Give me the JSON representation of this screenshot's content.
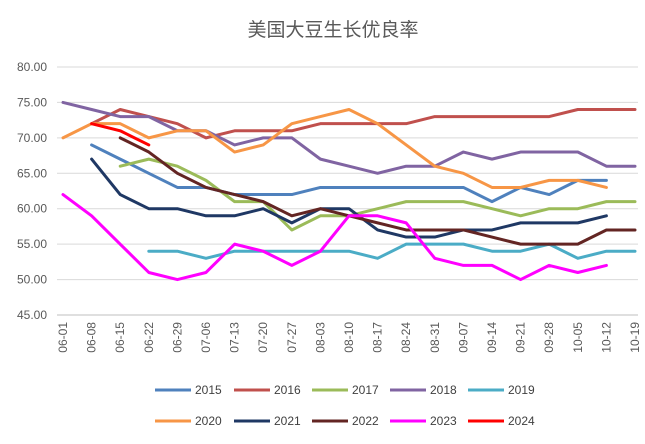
{
  "chart_data": {
    "type": "line",
    "title": "美国大豆生长优良率",
    "xlabel": "",
    "ylabel": "",
    "ylim": [
      45,
      80
    ],
    "yticks": [
      "45.00",
      "50.00",
      "55.00",
      "60.00",
      "65.00",
      "70.00",
      "75.00",
      "80.00"
    ],
    "categories": [
      "06-01",
      "06-08",
      "06-15",
      "06-22",
      "06-29",
      "07-06",
      "07-13",
      "07-20",
      "07-27",
      "08-03",
      "08-10",
      "08-17",
      "08-24",
      "08-31",
      "09-07",
      "09-14",
      "09-21",
      "09-28",
      "10-05",
      "10-12",
      "10-19"
    ],
    "grid": "horizontal",
    "legend_position": "bottom",
    "series": [
      {
        "name": "2015",
        "color": "#4F81BD",
        "values": [
          null,
          69,
          67,
          65,
          63,
          63,
          62,
          62,
          62,
          63,
          63,
          63,
          63,
          63,
          63,
          61,
          63,
          62,
          64,
          64,
          null
        ]
      },
      {
        "name": "2016",
        "color": "#C0504D",
        "values": [
          null,
          72,
          74,
          73,
          72,
          70,
          71,
          71,
          71,
          72,
          72,
          72,
          72,
          73,
          73,
          73,
          73,
          73,
          74,
          74,
          74
        ]
      },
      {
        "name": "2017",
        "color": "#9BBB59",
        "values": [
          null,
          null,
          66,
          67,
          66,
          64,
          61,
          61,
          57,
          59,
          59,
          60,
          61,
          61,
          61,
          60,
          59,
          60,
          60,
          61,
          61
        ]
      },
      {
        "name": "2018",
        "color": "#8064A2",
        "values": [
          75,
          74,
          73,
          73,
          71,
          71,
          69,
          70,
          70,
          67,
          66,
          65,
          66,
          66,
          68,
          67,
          68,
          68,
          68,
          66,
          66
        ]
      },
      {
        "name": "2019",
        "color": "#4BACC6",
        "values": [
          null,
          null,
          null,
          54,
          54,
          53,
          54,
          54,
          54,
          54,
          54,
          53,
          55,
          55,
          55,
          54,
          54,
          55,
          53,
          54,
          54
        ]
      },
      {
        "name": "2020",
        "color": "#F79646",
        "values": [
          70,
          72,
          72,
          70,
          71,
          71,
          68,
          69,
          72,
          73,
          74,
          72,
          69,
          66,
          65,
          63,
          63,
          64,
          64,
          63,
          null
        ]
      },
      {
        "name": "2021",
        "color": "#1F3864",
        "values": [
          null,
          67,
          62,
          60,
          60,
          59,
          59,
          60,
          58,
          60,
          60,
          57,
          56,
          56,
          57,
          57,
          58,
          58,
          58,
          59,
          null
        ]
      },
      {
        "name": "2022",
        "color": "#632523",
        "values": [
          null,
          null,
          70,
          68,
          65,
          63,
          62,
          61,
          59,
          60,
          59,
          58,
          57,
          57,
          57,
          56,
          55,
          55,
          55,
          57,
          57
        ]
      },
      {
        "name": "2023",
        "color": "#FF00FF",
        "values": [
          62,
          59,
          55,
          51,
          50,
          51,
          55,
          54,
          52,
          54,
          59,
          59,
          58,
          53,
          52,
          52,
          50,
          52,
          51,
          52,
          null
        ]
      },
      {
        "name": "2024",
        "color": "#FF0000",
        "values": [
          null,
          72,
          71,
          69,
          null,
          null,
          null,
          null,
          null,
          null,
          null,
          null,
          null,
          null,
          null,
          null,
          null,
          null,
          null,
          null,
          null
        ]
      }
    ]
  }
}
